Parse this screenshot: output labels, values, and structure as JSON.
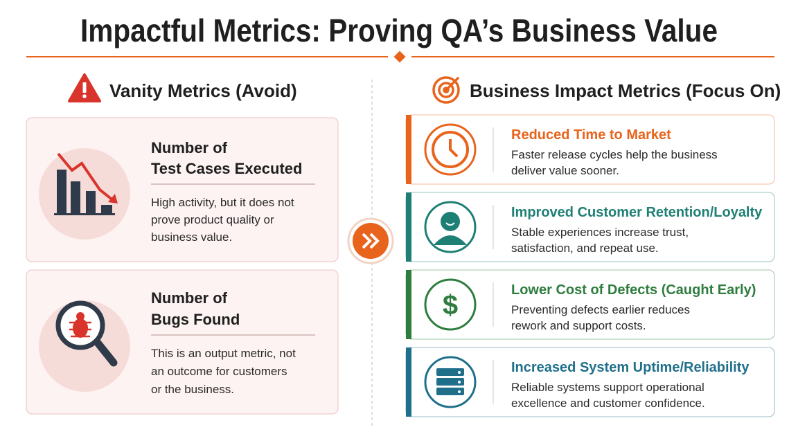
{
  "title": "Impactful Metrics: Proving QA’s Business Value",
  "vanity": {
    "heading": "Vanity Metrics (Avoid)",
    "cards": [
      {
        "title": [
          "Number of",
          "Test Cases Executed"
        ],
        "description": [
          "High activity, but it does not",
          "prove product quality or",
          "business value."
        ]
      },
      {
        "title": [
          "Number of",
          "Bugs Found"
        ],
        "description": [
          "This is an output metric, not",
          "an outcome for customers",
          "or the business."
        ]
      }
    ]
  },
  "impact": {
    "heading": "Business Impact Metrics (Focus On)",
    "cards": [
      {
        "title": "Reduced Time to Market",
        "description": [
          "Faster release cycles help the business",
          "deliver value sooner."
        ]
      },
      {
        "title": "Improved Customer Retention/Loyalty",
        "description": [
          "Stable experiences increase trust,",
          "satisfaction, and repeat use."
        ]
      },
      {
        "title": "Lower Cost of Defects (Caught Early)",
        "description": [
          "Preventing defects earlier reduces",
          "rework and support costs."
        ]
      },
      {
        "title": "Increased System Uptime/Reliability",
        "description": [
          "Reliable systems support operational",
          "excellence and customer confidence."
        ]
      }
    ]
  }
}
